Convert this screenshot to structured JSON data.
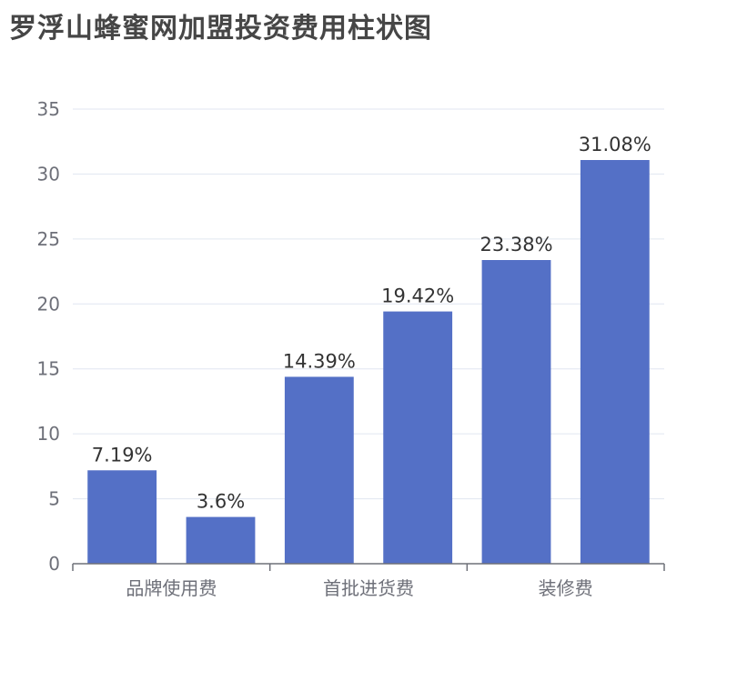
{
  "chart_data": {
    "type": "bar",
    "title": "罗浮山蜂蜜网加盟投资费用柱状图",
    "categories": [
      "品牌使用费",
      "",
      "首批进货费",
      "",
      "装修费",
      ""
    ],
    "values": [
      7.19,
      3.6,
      14.39,
      19.42,
      23.38,
      31.08
    ],
    "data_labels": [
      "7.19%",
      "3.6%",
      "14.39%",
      "19.42%",
      "23.38%",
      "31.08%"
    ],
    "y_ticks": [
      "0",
      "5",
      "10",
      "15",
      "20",
      "25",
      "30",
      "35"
    ],
    "ylim": [
      0,
      35
    ],
    "grid": true,
    "bar_color": "#5470c6",
    "grid_color": "#e0e6f1",
    "axis_color": "#6e7079"
  }
}
